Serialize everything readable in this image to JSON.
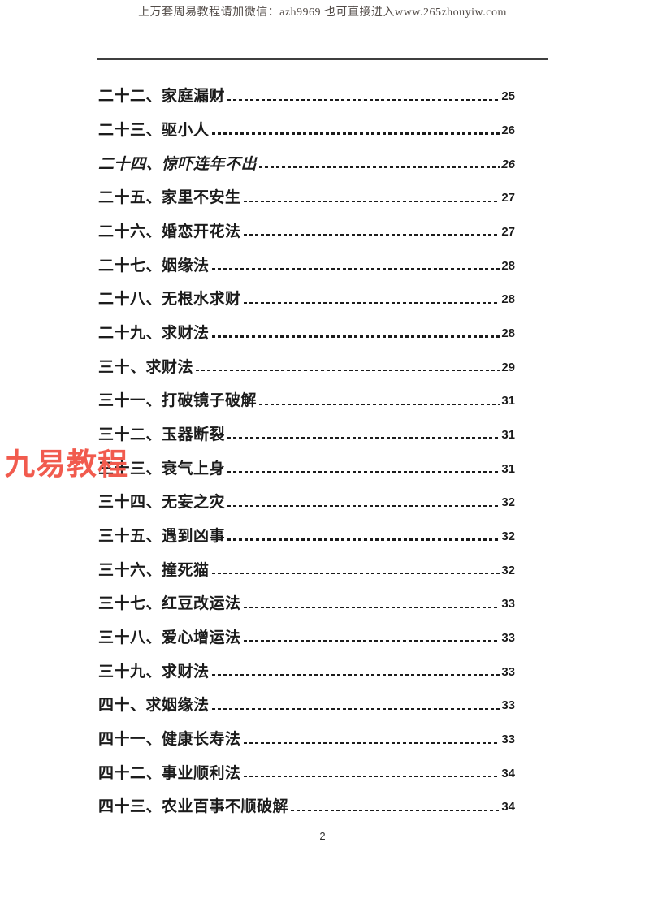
{
  "header": {
    "ad_text": "上万套周易教程请加微信：azh9969    也可直接进入www.265zhouyiw.com",
    "text_color": "#524b47"
  },
  "watermark": {
    "text": "九易教程",
    "color": "#f15b4e"
  },
  "toc": {
    "entries": [
      {
        "title": "二十二、家庭漏财",
        "page": "25",
        "italic": false
      },
      {
        "title": "二十三、驱小人",
        "page": "26",
        "italic": false
      },
      {
        "title": "二十四、惊吓连年不出",
        "page": "26",
        "italic": true
      },
      {
        "title": "二十五、家里不安生",
        "page": "27",
        "italic": false
      },
      {
        "title": "二十六、婚恋开花法",
        "page": "27",
        "italic": false
      },
      {
        "title": "二十七、姻缘法",
        "page": "28",
        "italic": false
      },
      {
        "title": "二十八、无根水求财",
        "page": "28",
        "italic": false
      },
      {
        "title": "二十九、求财法",
        "page": "28",
        "italic": false
      },
      {
        "title": "三十、求财法",
        "page": "29",
        "italic": false
      },
      {
        "title": "三十一、打破镜子破解",
        "page": "31",
        "italic": false
      },
      {
        "title": "三十二、玉器断裂",
        "page": "31",
        "italic": false
      },
      {
        "title": "三十三、衰气上身",
        "page": "31",
        "italic": false
      },
      {
        "title": "三十四、无妄之灾",
        "page": "32",
        "italic": false
      },
      {
        "title": "三十五、遇到凶事",
        "page": "32",
        "italic": false
      },
      {
        "title": "三十六、撞死猫",
        "page": "32",
        "italic": false
      },
      {
        "title": "三十七、红豆改运法",
        "page": "33",
        "italic": false
      },
      {
        "title": "三十八、爱心增运法",
        "page": "33",
        "italic": false
      },
      {
        "title": "三十九、求财法",
        "page": "33",
        "italic": false
      },
      {
        "title": "四十、求姻缘法",
        "page": "33",
        "italic": false
      },
      {
        "title": "四十一、健康长寿法",
        "page": "33",
        "italic": false
      },
      {
        "title": "四十二、事业顺利法",
        "page": "34",
        "italic": false
      },
      {
        "title": "四十三、农业百事不顺破解",
        "page": "34",
        "italic": false
      }
    ]
  },
  "footer": {
    "page_number": "2"
  }
}
